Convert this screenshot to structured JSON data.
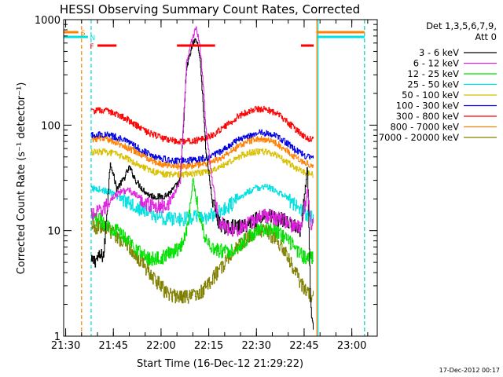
{
  "chart_data": {
    "type": "line",
    "title": "HESSI Observing Summary Count Rates, Corrected",
    "xlabel": "Start Time (16-Dec-12 21:29:22)",
    "ylabel": "Corrected Count Rate (s⁻¹ detector⁻¹)",
    "y_scale": "log",
    "ylim": [
      1,
      1000
    ],
    "y_ticks": [
      1,
      10,
      100,
      1000
    ],
    "y_tick_labels": [
      "1",
      "10",
      "100",
      "1000"
    ],
    "x_time_range": [
      "21:29:22",
      "23:08"
    ],
    "x_tick_labels": [
      "21:30",
      "21:45",
      "22:00",
      "22:15",
      "22:30",
      "22:45",
      "23:00"
    ],
    "grid": false,
    "legend_position": "right",
    "legend_header": [
      "Det 1,3,5,6,7,9,",
      "Att 0"
    ],
    "footer_date": "17-Dec-2012 00:17",
    "data_window": [
      "21:37",
      "22:48"
    ],
    "series": [
      {
        "name": "3 - 6 keV",
        "color": "#000000",
        "times": [
          "21:38",
          "21:40",
          "21:42",
          "21:44",
          "21:46",
          "21:48",
          "21:50",
          "21:52",
          "21:54",
          "21:56",
          "21:58",
          "22:00",
          "22:02",
          "22:04",
          "22:06",
          "22:08",
          "22:10",
          "22:11",
          "22:12",
          "22:13",
          "22:14",
          "22:16",
          "22:18",
          "22:20",
          "22:22",
          "22:24",
          "22:26",
          "22:28",
          "22:30",
          "22:32",
          "22:34",
          "22:36",
          "22:38",
          "22:40",
          "22:42",
          "22:44",
          "22:46",
          "22:47",
          "22:48"
        ],
        "values": [
          5,
          5.5,
          6,
          45,
          25,
          30,
          40,
          30,
          25,
          22,
          21,
          21,
          22,
          25,
          30,
          350,
          600,
          650,
          500,
          200,
          60,
          20,
          12,
          11,
          11,
          11,
          11,
          12,
          13,
          14,
          14,
          13,
          13,
          12,
          11,
          10,
          40,
          2,
          1.1
        ]
      },
      {
        "name": "6 - 12 keV",
        "color": "#e020e0",
        "times": [
          "21:38",
          "21:40",
          "21:42",
          "21:44",
          "21:46",
          "21:48",
          "21:50",
          "21:52",
          "21:54",
          "21:56",
          "21:58",
          "22:00",
          "22:02",
          "22:04",
          "22:06",
          "22:08",
          "22:10",
          "22:11",
          "22:12",
          "22:13",
          "22:14",
          "22:16",
          "22:18",
          "22:20",
          "22:22",
          "22:24",
          "22:26",
          "22:28",
          "22:30",
          "22:32",
          "22:34",
          "22:36",
          "22:38",
          "22:40",
          "22:42",
          "22:44",
          "22:46",
          "22:47",
          "22:48"
        ],
        "values": [
          14,
          15,
          16,
          20,
          22,
          24,
          24,
          22,
          19,
          18,
          17,
          17,
          18,
          22,
          30,
          400,
          700,
          850,
          600,
          300,
          100,
          30,
          13,
          11,
          10.5,
          10.5,
          11,
          12,
          13,
          14,
          14,
          13,
          13,
          12,
          11,
          10.5,
          25,
          12,
          12
        ]
      },
      {
        "name": "12 - 25 keV",
        "color": "#00e000",
        "times": [
          "21:38",
          "21:40",
          "21:42",
          "21:44",
          "21:46",
          "21:48",
          "21:50",
          "21:52",
          "21:54",
          "21:56",
          "21:58",
          "22:00",
          "22:02",
          "22:04",
          "22:06",
          "22:08",
          "22:10",
          "22:12",
          "22:14",
          "22:16",
          "22:18",
          "22:20",
          "22:22",
          "22:24",
          "22:26",
          "22:28",
          "22:30",
          "22:32",
          "22:34",
          "22:36",
          "22:38",
          "22:40",
          "22:42",
          "22:44",
          "22:46",
          "22:48"
        ],
        "values": [
          13,
          13,
          12,
          11,
          10,
          9,
          8,
          7,
          6,
          5.5,
          5.5,
          5.5,
          6,
          6.5,
          7,
          10,
          30,
          14,
          8.5,
          7,
          6.5,
          6.5,
          6.5,
          7,
          8,
          9,
          10,
          10.5,
          10.5,
          10,
          9,
          8,
          7,
          6,
          5.5,
          5.5
        ]
      },
      {
        "name": "25 - 50 keV",
        "color": "#00e0e0",
        "times": [
          "21:38",
          "21:40",
          "21:42",
          "21:44",
          "21:46",
          "21:48",
          "21:50",
          "21:52",
          "21:54",
          "21:56",
          "21:58",
          "22:00",
          "22:02",
          "22:04",
          "22:06",
          "22:08",
          "22:10",
          "22:12",
          "22:14",
          "22:16",
          "22:18",
          "22:20",
          "22:22",
          "22:24",
          "22:26",
          "22:28",
          "22:30",
          "22:32",
          "22:34",
          "22:36",
          "22:38",
          "22:40",
          "22:42",
          "22:44",
          "22:46",
          "22:48"
        ],
        "values": [
          25,
          25,
          24,
          23,
          21,
          20,
          19,
          17,
          16,
          15,
          14,
          13.5,
          13,
          13,
          13,
          13,
          13.5,
          13.5,
          13.5,
          14,
          15,
          16,
          18,
          20,
          22,
          24,
          25.5,
          26,
          25.5,
          24,
          22,
          20,
          18,
          16,
          14,
          13.5
        ]
      },
      {
        "name": "50 - 100 keV",
        "color": "#d8c000",
        "times": [
          "21:38",
          "21:40",
          "21:42",
          "21:44",
          "21:46",
          "21:48",
          "21:50",
          "21:52",
          "21:54",
          "21:56",
          "21:58",
          "22:00",
          "22:02",
          "22:04",
          "22:06",
          "22:08",
          "22:10",
          "22:12",
          "22:14",
          "22:16",
          "22:18",
          "22:20",
          "22:22",
          "22:24",
          "22:26",
          "22:28",
          "22:30",
          "22:32",
          "22:34",
          "22:36",
          "22:38",
          "22:40",
          "22:42",
          "22:44",
          "22:46",
          "22:48"
        ],
        "values": [
          55,
          56,
          56,
          55,
          53,
          50,
          47,
          44,
          41,
          38,
          36,
          35,
          34,
          34,
          34,
          34.5,
          35,
          35.5,
          36,
          37,
          39,
          42,
          46,
          50,
          53,
          55,
          56,
          56,
          55,
          52,
          48,
          44,
          40,
          37,
          35,
          34
        ]
      },
      {
        "name": "100 - 300 keV",
        "color": "#0000e0",
        "times": [
          "21:38",
          "21:40",
          "21:42",
          "21:44",
          "21:46",
          "21:48",
          "21:50",
          "21:52",
          "21:54",
          "21:56",
          "21:58",
          "22:00",
          "22:02",
          "22:04",
          "22:06",
          "22:08",
          "22:10",
          "22:12",
          "22:14",
          "22:16",
          "22:18",
          "22:20",
          "22:22",
          "22:24",
          "22:26",
          "22:28",
          "22:30",
          "22:32",
          "22:34",
          "22:36",
          "22:38",
          "22:40",
          "22:42",
          "22:44",
          "22:46",
          "22:48"
        ],
        "values": [
          80,
          82,
          82,
          80,
          77,
          73,
          68,
          63,
          58,
          54,
          51,
          49,
          47,
          46,
          46,
          46,
          47,
          48,
          49,
          51,
          55,
          60,
          66,
          72,
          77,
          81,
          84,
          85,
          83,
          79,
          73,
          66,
          59,
          54,
          50,
          48
        ]
      },
      {
        "name": "300 - 800 keV",
        "color": "#ff0000",
        "times": [
          "21:38",
          "21:40",
          "21:42",
          "21:44",
          "21:46",
          "21:48",
          "21:50",
          "21:52",
          "21:54",
          "21:56",
          "21:58",
          "22:00",
          "22:02",
          "22:04",
          "22:06",
          "22:08",
          "22:10",
          "22:12",
          "22:14",
          "22:16",
          "22:18",
          "22:20",
          "22:22",
          "22:24",
          "22:26",
          "22:28",
          "22:30",
          "22:32",
          "22:34",
          "22:36",
          "22:38",
          "22:40",
          "22:42",
          "22:44",
          "22:46",
          "22:48"
        ],
        "values": [
          135,
          138,
          138,
          134,
          128,
          120,
          110,
          100,
          92,
          85,
          80,
          76,
          73,
          71,
          70,
          70,
          71,
          73,
          76,
          80,
          88,
          97,
          108,
          120,
          130,
          138,
          142,
          142,
          138,
          130,
          118,
          105,
          93,
          83,
          75,
          72
        ]
      },
      {
        "name": "800 - 7000 keV",
        "color": "#ff8000",
        "times": [
          "21:38",
          "21:40",
          "21:42",
          "21:44",
          "21:46",
          "21:48",
          "21:50",
          "21:52",
          "21:54",
          "21:56",
          "21:58",
          "22:00",
          "22:02",
          "22:04",
          "22:06",
          "22:08",
          "22:10",
          "22:12",
          "22:14",
          "22:16",
          "22:18",
          "22:20",
          "22:22",
          "22:24",
          "22:26",
          "22:28",
          "22:30",
          "22:32",
          "22:34",
          "22:36",
          "22:38",
          "22:40",
          "22:42",
          "22:44",
          "22:46",
          "22:48"
        ],
        "values": [
          73,
          75,
          75,
          72,
          68,
          64,
          60,
          56,
          52,
          48,
          45,
          43,
          42,
          41,
          41,
          41,
          41.5,
          42,
          43,
          45,
          48,
          52,
          57,
          62,
          67,
          71,
          74,
          74,
          72,
          68,
          62,
          56,
          50,
          46,
          43,
          41
        ]
      },
      {
        "name": "7000 - 20000 keV",
        "color": "#808000",
        "times": [
          "21:38",
          "21:40",
          "21:42",
          "21:44",
          "21:46",
          "21:48",
          "21:50",
          "21:52",
          "21:54",
          "21:56",
          "21:58",
          "22:00",
          "22:02",
          "22:04",
          "22:06",
          "22:08",
          "22:10",
          "22:12",
          "22:14",
          "22:16",
          "22:18",
          "22:20",
          "22:22",
          "22:24",
          "22:26",
          "22:28",
          "22:30",
          "22:32",
          "22:34",
          "22:36",
          "22:38",
          "22:40",
          "22:42",
          "22:44",
          "22:46",
          "22:48"
        ],
        "values": [
          11,
          11,
          11,
          10,
          9,
          8,
          7,
          6,
          5,
          4.2,
          3.5,
          3,
          2.5,
          2.4,
          2.4,
          2.4,
          2.4,
          2.5,
          3,
          3.5,
          4.2,
          5,
          6,
          7,
          8,
          9,
          10,
          10,
          9.5,
          8.5,
          7,
          5.5,
          4.2,
          3.2,
          2.6,
          2.4
        ]
      }
    ],
    "status_flags": [
      {
        "label": "S",
        "color": "#ff8000",
        "spans": [
          [
            "21:29:22",
            "21:34"
          ],
          [
            "22:49",
            "23:04"
          ]
        ]
      },
      {
        "label": "N",
        "color": "#00e0e0",
        "spans": [
          [
            "21:29:22",
            "21:37"
          ],
          [
            "22:49",
            "23:04"
          ]
        ]
      },
      {
        "label": "F",
        "color": "#ff0000",
        "spans": [
          [
            "21:40",
            "21:46"
          ],
          [
            "22:05",
            "22:17"
          ],
          [
            "22:44",
            "22:48"
          ]
        ]
      }
    ],
    "vertical_markers": [
      {
        "time": "21:35",
        "color": "#ff8000",
        "style": "dashed"
      },
      {
        "time": "21:38",
        "color": "#00e0e0",
        "style": "dashed"
      },
      {
        "time": "22:49",
        "color": "#ff8000",
        "style": "solid"
      },
      {
        "time": "22:49",
        "color": "#00e0e0",
        "style": "solid"
      },
      {
        "time": "23:04",
        "color": "#ff8000",
        "style": "dashed"
      },
      {
        "time": "23:04",
        "color": "#00e0e0",
        "style": "dashed"
      }
    ]
  }
}
